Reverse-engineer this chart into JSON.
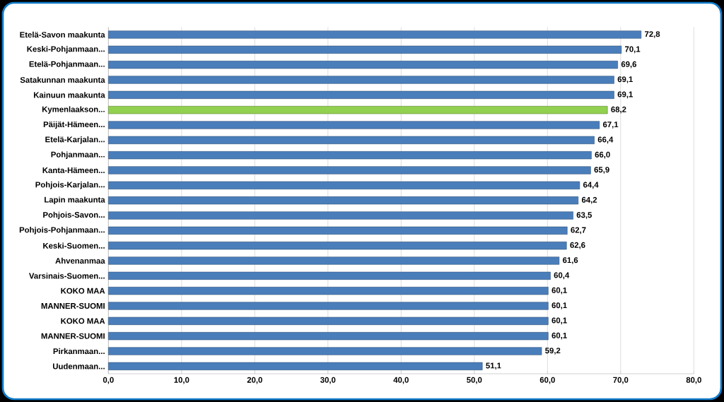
{
  "chart_data": {
    "type": "bar",
    "orientation": "horizontal",
    "categories": [
      "Etelä-Savon maakunta",
      "Keski-Pohjanmaan...",
      "Etelä-Pohjanmaan...",
      "Satakunnan maakunta",
      "Kainuun maakunta",
      "Kymenlaakson...",
      "Päijät-Hämeen...",
      "Etelä-Karjalan...",
      "Pohjanmaan...",
      "Kanta-Hämeen...",
      "Pohjois-Karjalan...",
      "Lapin maakunta",
      "Pohjois-Savon...",
      "Pohjois-Pohjanmaan...",
      "Keski-Suomen...",
      "Ahvenanmaa",
      "Varsinais-Suomen...",
      "KOKO MAA",
      "MANNER-SUOMI",
      "KOKO MAA",
      "MANNER-SUOMI",
      "Pirkanmaan...",
      "Uudenmaan..."
    ],
    "values": [
      72.8,
      70.1,
      69.6,
      69.1,
      69.1,
      68.2,
      67.1,
      66.4,
      66.0,
      65.9,
      64.4,
      64.2,
      63.5,
      62.7,
      62.6,
      61.6,
      60.4,
      60.1,
      60.1,
      60.1,
      60.1,
      59.2,
      51.1
    ],
    "value_labels": [
      "72,8",
      "70,1",
      "69,6",
      "69,1",
      "69,1",
      "68,2",
      "67,1",
      "66,4",
      "66,0",
      "65,9",
      "64,4",
      "64,2",
      "63,5",
      "62,7",
      "62,6",
      "61,6",
      "60,4",
      "60,1",
      "60,1",
      "60,1",
      "60,1",
      "59,2",
      "51,1"
    ],
    "colors": [
      "#4a7ebb",
      "#4a7ebb",
      "#4a7ebb",
      "#4a7ebb",
      "#4a7ebb",
      "#92d050",
      "#4a7ebb",
      "#4a7ebb",
      "#4a7ebb",
      "#4a7ebb",
      "#4a7ebb",
      "#4a7ebb",
      "#4a7ebb",
      "#4a7ebb",
      "#4a7ebb",
      "#4a7ebb",
      "#4a7ebb",
      "#4a7ebb",
      "#4a7ebb",
      "#4a7ebb",
      "#4a7ebb",
      "#4a7ebb",
      "#4a7ebb"
    ],
    "xlim": [
      0,
      80
    ],
    "xticks": [
      {
        "value": 0,
        "label": "0,0"
      },
      {
        "value": 10,
        "label": "10,0"
      },
      {
        "value": 20,
        "label": "20,0"
      },
      {
        "value": 30,
        "label": "30,0"
      },
      {
        "value": 40,
        "label": "40,0"
      },
      {
        "value": 50,
        "label": "50,0"
      },
      {
        "value": 60,
        "label": "60,0"
      },
      {
        "value": 70,
        "label": "70,0"
      },
      {
        "value": 80,
        "label": "80,0"
      }
    ],
    "grid": "x"
  }
}
